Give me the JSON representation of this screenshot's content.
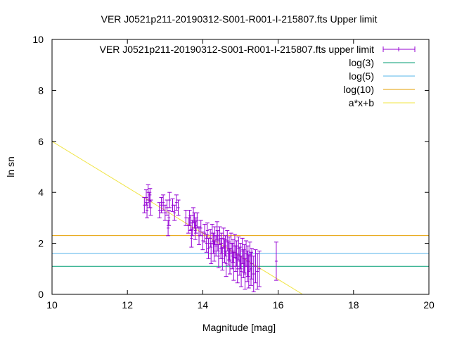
{
  "chart_data": {
    "type": "scatter",
    "title": "VER J0521p211-20190312-S001-R001-I-215807.fts Upper limit",
    "xlabel": "Magnitude [mag]",
    "ylabel": "ln sn",
    "xlim": [
      10,
      20
    ],
    "ylim": [
      0,
      10
    ],
    "xticks": [
      "10",
      "12",
      "14",
      "16",
      "18",
      "20"
    ],
    "yticks": [
      "0",
      "2",
      "4",
      "6",
      "8",
      "10"
    ],
    "grid": false,
    "legend_position": "top-right",
    "colors": {
      "points": "#9400d3",
      "log3": "#009e73",
      "log5": "#56b4e9",
      "log10": "#e69f00",
      "fit": "#f0e442"
    },
    "legend": [
      "VER J0521p211-20190312-S001-R001-I-215807.fts upper limit",
      "log(3)",
      "log(5)",
      "log(10)",
      "a*x+b"
    ],
    "hlines": [
      {
        "name": "log(3)",
        "y": 1.0986
      },
      {
        "name": "log(5)",
        "y": 1.6094
      },
      {
        "name": "log(10)",
        "y": 2.3026
      }
    ],
    "fit_line": {
      "name": "a*x+b",
      "x": [
        10.0,
        16.65
      ],
      "y": [
        6.0,
        0.0
      ]
    },
    "series": [
      {
        "name": "VER J0521p211-20190312-S001-R001-I-215807.fts upper limit",
        "points": [
          [
            12.45,
            3.5,
            0.3
          ],
          [
            12.5,
            3.8,
            0.3
          ],
          [
            12.52,
            3.3,
            0.3
          ],
          [
            12.55,
            4.0,
            0.3
          ],
          [
            12.58,
            3.7,
            0.3
          ],
          [
            12.6,
            3.9,
            0.25
          ],
          [
            12.62,
            3.4,
            0.3
          ],
          [
            12.85,
            3.3,
            0.3
          ],
          [
            12.9,
            3.5,
            0.3
          ],
          [
            12.95,
            3.6,
            0.3
          ],
          [
            13.0,
            3.2,
            0.3
          ],
          [
            13.05,
            3.4,
            0.3
          ],
          [
            13.08,
            2.6,
            0.3
          ],
          [
            13.1,
            3.0,
            0.3
          ],
          [
            13.12,
            3.7,
            0.3
          ],
          [
            13.2,
            3.5,
            0.25
          ],
          [
            13.25,
            3.2,
            0.3
          ],
          [
            13.3,
            3.6,
            0.3
          ],
          [
            13.35,
            3.4,
            0.3
          ],
          [
            13.55,
            3.0,
            0.3
          ],
          [
            13.62,
            2.7,
            0.3
          ],
          [
            13.65,
            3.0,
            0.3
          ],
          [
            13.68,
            2.8,
            0.3
          ],
          [
            13.7,
            2.2,
            0.35
          ],
          [
            13.72,
            2.6,
            0.3
          ],
          [
            13.75,
            3.1,
            0.3
          ],
          [
            13.78,
            2.9,
            0.3
          ],
          [
            13.8,
            2.5,
            0.35
          ],
          [
            13.82,
            2.7,
            0.3
          ],
          [
            13.85,
            2.9,
            0.3
          ],
          [
            13.9,
            2.3,
            0.35
          ],
          [
            13.95,
            2.6,
            0.3
          ],
          [
            14.0,
            2.1,
            0.35
          ],
          [
            14.05,
            2.4,
            0.35
          ],
          [
            14.1,
            2.0,
            0.35
          ],
          [
            14.12,
            2.5,
            0.3
          ],
          [
            14.15,
            1.8,
            0.4
          ],
          [
            14.2,
            2.2,
            0.35
          ],
          [
            14.22,
            1.6,
            0.4
          ],
          [
            14.25,
            2.4,
            0.35
          ],
          [
            14.28,
            2.0,
            0.4
          ],
          [
            14.3,
            1.7,
            0.4
          ],
          [
            14.32,
            2.3,
            0.35
          ],
          [
            14.35,
            1.9,
            0.4
          ],
          [
            14.38,
            2.5,
            0.35
          ],
          [
            14.4,
            2.1,
            0.4
          ],
          [
            14.42,
            1.5,
            0.45
          ],
          [
            14.45,
            2.3,
            0.35
          ],
          [
            14.48,
            1.8,
            0.4
          ],
          [
            14.5,
            2.0,
            0.4
          ],
          [
            14.52,
            1.4,
            0.45
          ],
          [
            14.55,
            2.2,
            0.4
          ],
          [
            14.58,
            1.7,
            0.45
          ],
          [
            14.6,
            1.9,
            0.4
          ],
          [
            14.62,
            1.2,
            0.5
          ],
          [
            14.65,
            2.1,
            0.4
          ],
          [
            14.68,
            1.6,
            0.45
          ],
          [
            14.7,
            1.8,
            0.45
          ],
          [
            14.72,
            1.3,
            0.5
          ],
          [
            14.75,
            2.0,
            0.4
          ],
          [
            14.78,
            1.5,
            0.5
          ],
          [
            14.8,
            1.7,
            0.45
          ],
          [
            14.82,
            1.1,
            0.55
          ],
          [
            14.85,
            1.9,
            0.45
          ],
          [
            14.88,
            1.4,
            0.5
          ],
          [
            14.9,
            1.6,
            0.5
          ],
          [
            14.92,
            1.0,
            0.55
          ],
          [
            14.95,
            1.8,
            0.45
          ],
          [
            14.98,
            1.3,
            0.55
          ],
          [
            15.0,
            1.5,
            0.5
          ],
          [
            15.02,
            0.9,
            0.6
          ],
          [
            15.05,
            1.7,
            0.5
          ],
          [
            15.08,
            1.2,
            0.55
          ],
          [
            15.1,
            1.4,
            0.55
          ],
          [
            15.12,
            0.8,
            0.6
          ],
          [
            15.15,
            1.6,
            0.5
          ],
          [
            15.18,
            1.1,
            0.6
          ],
          [
            15.2,
            1.3,
            0.6
          ],
          [
            15.22,
            0.9,
            0.65
          ],
          [
            15.25,
            1.5,
            0.55
          ],
          [
            15.28,
            1.0,
            0.65
          ],
          [
            15.3,
            1.2,
            0.6
          ],
          [
            15.35,
            0.8,
            0.7
          ],
          [
            15.4,
            1.1,
            0.65
          ],
          [
            15.45,
            0.9,
            0.7
          ],
          [
            15.5,
            1.0,
            0.7
          ],
          [
            15.95,
            1.3,
            0.75
          ]
        ]
      }
    ]
  }
}
